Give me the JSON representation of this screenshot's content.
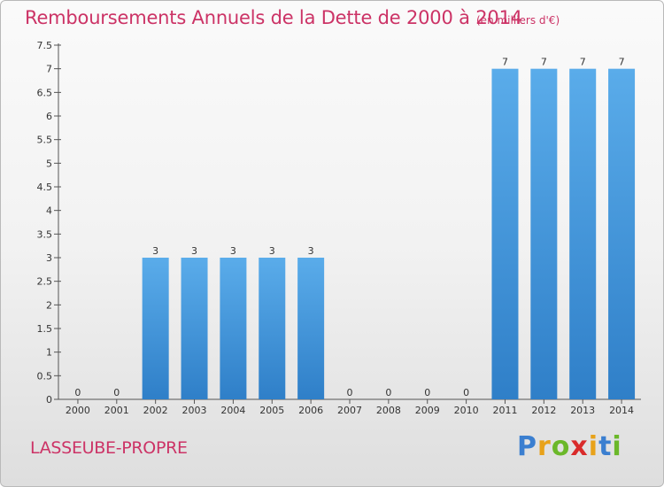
{
  "chart_data": {
    "type": "bar",
    "title": "Remboursements Annuels de la Dette de 2000 à 2014",
    "subtitle": "(en milliers d'€)",
    "categories": [
      "2000",
      "2001",
      "2002",
      "2003",
      "2004",
      "2005",
      "2006",
      "2007",
      "2008",
      "2009",
      "2010",
      "2011",
      "2012",
      "2013",
      "2014"
    ],
    "values": [
      0,
      0,
      3,
      3,
      3,
      3,
      3,
      0,
      0,
      0,
      0,
      7,
      7,
      7,
      7
    ],
    "ylim": [
      0,
      7.5
    ],
    "yticks": [
      "0",
      "0.5",
      "1",
      "1.5",
      "2",
      "2.5",
      "3",
      "3.5",
      "4",
      "4.5",
      "5",
      "5.5",
      "6",
      "6.5",
      "7",
      "7.5"
    ],
    "grid": false,
    "bar_color": "#4a9fe0"
  },
  "footer": {
    "place": "LASSEUBE-PROPRE",
    "logo_letters": [
      "P",
      "r",
      "o",
      "x",
      "i",
      "t",
      "i"
    ],
    "logo_colors": [
      "#3b7fd0",
      "#e8a21a",
      "#6bb82a",
      "#d92b2b",
      "#e8a21a",
      "#3b7fd0",
      "#6bb82a"
    ]
  }
}
